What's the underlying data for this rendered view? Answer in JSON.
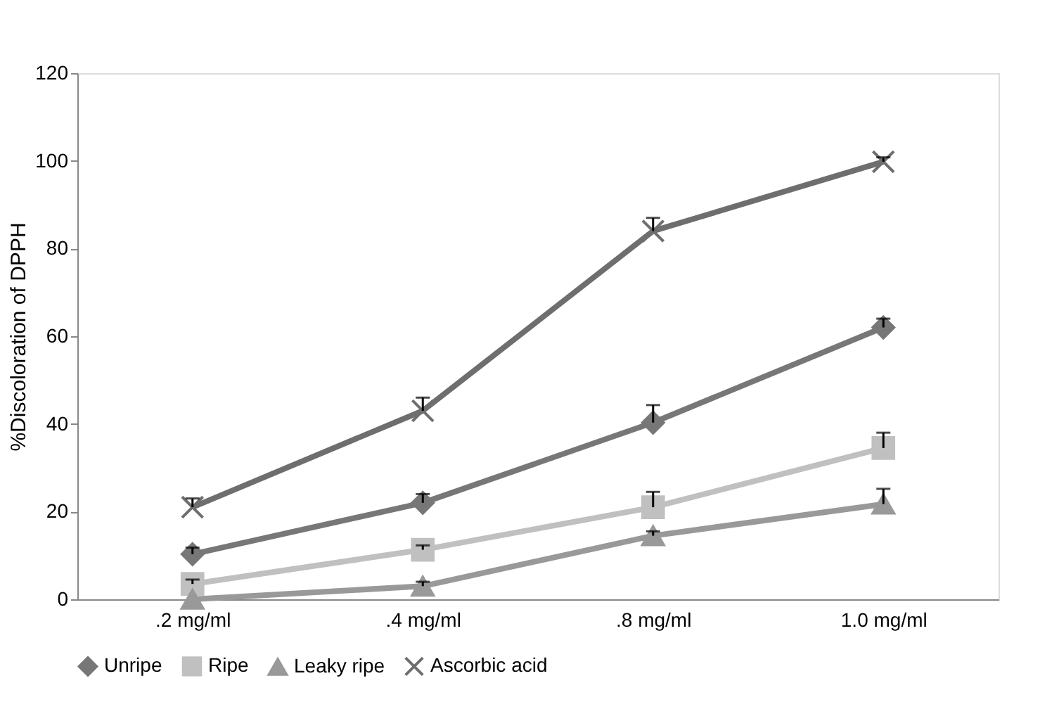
{
  "chart_data": {
    "type": "line",
    "ylabel": "%Discoloration of DPPH",
    "categories": [
      ".2 mg/ml",
      ".4 mg/ml",
      ".8 mg/ml",
      "1.0 mg/ml"
    ],
    "series": [
      {
        "name": "Unripe",
        "color": "#777777",
        "marker": "diamond",
        "values": [
          10.3,
          22,
          40.3,
          62
        ],
        "errors": [
          [
            10.3,
            11.8
          ],
          [
            22,
            24
          ],
          [
            40.3,
            44.3
          ],
          [
            62,
            64
          ]
        ]
      },
      {
        "name": "Ripe",
        "color": "#c0c0c0",
        "marker": "square",
        "values": [
          3.5,
          11.3,
          21,
          34.5
        ],
        "errors": [
          [
            3.5,
            4.5
          ],
          [
            11.3,
            12.3
          ],
          [
            21,
            24.5
          ],
          [
            34.5,
            38
          ]
        ]
      },
      {
        "name": "Leaky ripe",
        "color": "#999999",
        "marker": "triangle",
        "values": [
          0,
          3,
          14.5,
          21.7
        ],
        "errors": [
          null,
          [
            3,
            4
          ],
          [
            14.5,
            15.5
          ],
          [
            21.7,
            25.2
          ]
        ]
      },
      {
        "name": "Ascorbic acid",
        "color": "#6e6e6e",
        "marker": "cross",
        "values": [
          21,
          43,
          84,
          99.8
        ],
        "errors": [
          [
            21,
            23
          ],
          [
            43,
            46
          ],
          [
            84,
            87
          ],
          [
            99.8,
            100.8
          ]
        ]
      }
    ],
    "ylim": [
      0,
      120
    ],
    "yticks": [
      0,
      20,
      40,
      60,
      80,
      100,
      120
    ],
    "grid": false,
    "legend": "bottom"
  }
}
